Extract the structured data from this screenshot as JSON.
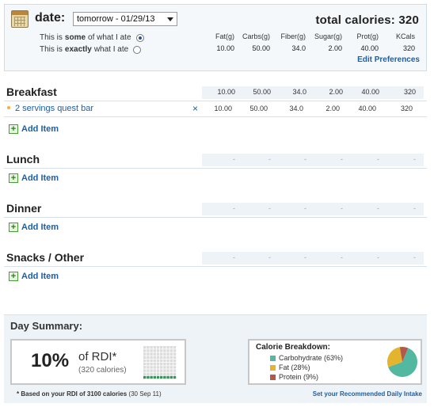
{
  "header": {
    "date_label": "date:",
    "date_value": "tomorrow - 01/29/13",
    "total_calories": "total calories: 320",
    "option_some_pre": "This is",
    "option_some_bold": "some",
    "option_some_post": "of what I ate",
    "option_exact_pre": "This is",
    "option_exact_bold": "exactly",
    "option_exact_post": "what I ate",
    "selected_option": "some",
    "columns": [
      "Fat(g)",
      "Carbs(g)",
      "Fiber(g)",
      "Sugar(g)",
      "Prot(g)",
      "KCals"
    ],
    "totals": [
      "10.00",
      "50.00",
      "34.0",
      "2.00",
      "40.00",
      "320"
    ],
    "edit_preferences": "Edit Preferences"
  },
  "meals": [
    {
      "name": "Breakfast",
      "totals": [
        "10.00",
        "50.00",
        "34.0",
        "2.00",
        "40.00",
        "320"
      ],
      "items": [
        {
          "name": "2 servings quest bar",
          "remove": "×",
          "values": [
            "10.00",
            "50.00",
            "34.0",
            "2.00",
            "40.00",
            "320"
          ]
        }
      ],
      "add_label": "Add Item"
    },
    {
      "name": "Lunch",
      "totals": [
        "-",
        "-",
        "-",
        "-",
        "-",
        "-"
      ],
      "items": [],
      "add_label": "Add Item"
    },
    {
      "name": "Dinner",
      "totals": [
        "-",
        "-",
        "-",
        "-",
        "-",
        "-"
      ],
      "items": [],
      "add_label": "Add Item"
    },
    {
      "name": "Snacks / Other",
      "totals": [
        "-",
        "-",
        "-",
        "-",
        "-",
        "-"
      ],
      "items": [],
      "add_label": "Add Item"
    }
  ],
  "add_icon": "+",
  "summary": {
    "title": "Day Summary:",
    "rdi_percent": "10%",
    "rdi_of": "of RDI*",
    "rdi_calories": "(320 calories)",
    "rdi_fraction": 0.1,
    "breakdown_title": "Calorie Breakdown:",
    "breakdown": [
      {
        "label": "Carbohydrate (63%)",
        "color": "#52b8a0",
        "share": 63
      },
      {
        "label": "Fat (28%)",
        "color": "#e3b52e",
        "share": 28
      },
      {
        "label": "Protein (9%)",
        "color": "#b4594a",
        "share": 9
      }
    ],
    "footnote_bold": "* Based on your RDI of 3100 calories",
    "footnote_rest": "(30 Sep 11)",
    "set_rdi": "Set your Recommended Daily Intake"
  }
}
